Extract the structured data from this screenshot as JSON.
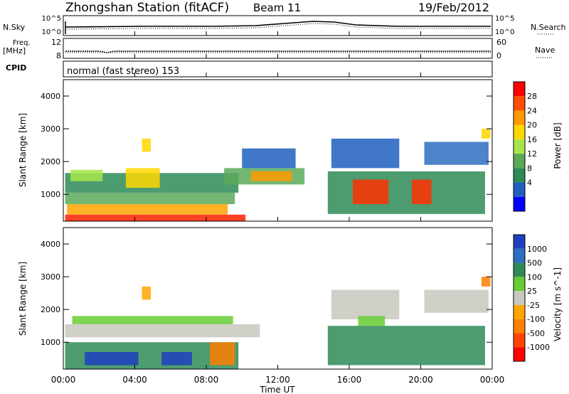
{
  "header": {
    "title": "Zhongshan Station (fitACF)",
    "beam": "Beam 11",
    "date": "19/Feb/2012"
  },
  "noise_panel": {
    "left_label": "N.Sky",
    "left_ticks": [
      "10^5",
      "10^0"
    ],
    "right_ticks": [
      "10^5",
      "10^0"
    ],
    "right_label": "N.Search"
  },
  "freq_panel": {
    "left_label_1": "Freq.",
    "left_label_2": "[MHz]",
    "left_ticks": [
      "12",
      "8"
    ],
    "right_ticks": [
      "60",
      "0"
    ],
    "right_label": "Nave"
  },
  "cpid_panel": {
    "label": "CPID",
    "mode": "normal (fast stereo) 153"
  },
  "axes": {
    "ylabel": "Slant Range [km]",
    "xlabel": "Time UT",
    "y_ticks": [
      "4000",
      "3000",
      "2000",
      "1000"
    ],
    "x_ticks": [
      "00:00",
      "04:00",
      "08:00",
      "12:00",
      "16:00",
      "20:00",
      "00:00"
    ]
  },
  "power_colorbar": {
    "label": "Power [dB]",
    "ticks": [
      "28",
      "24",
      "20",
      "16",
      "12",
      "8",
      "4"
    ],
    "colors": [
      "#ff0000",
      "#ff4c00",
      "#ff9a00",
      "#ffd700",
      "#a6e64b",
      "#5aaa5a",
      "#2e8b57",
      "#1f5fbf",
      "#0000ff"
    ]
  },
  "velocity_colorbar": {
    "label": "Velocity [m s^-1]",
    "ticks": [
      "1000",
      "500",
      "100",
      "25",
      "-25",
      "-100",
      "-500",
      "-1000"
    ],
    "colors": [
      "#1f3fbf",
      "#2e6fbf",
      "#2e8b57",
      "#66cc33",
      "#c8c8c0",
      "#ffa500",
      "#ff7f00",
      "#ff4500",
      "#ff0000"
    ]
  },
  "chart_data": {
    "type": "heatmap",
    "x_range_hours": [
      0,
      24
    ],
    "ylim": [
      180,
      4500
    ],
    "power_regions": [
      {
        "t0": 0.1,
        "t1": 10.2,
        "r0": 180,
        "r1": 380,
        "color": "#ff2000"
      },
      {
        "t0": 0.2,
        "t1": 9.2,
        "r0": 380,
        "r1": 700,
        "color": "#ffa500"
      },
      {
        "t0": 0.1,
        "t1": 9.6,
        "r0": 700,
        "r1": 1050,
        "color": "#5aaa5a"
      },
      {
        "t0": 0.1,
        "t1": 9.8,
        "r0": 1050,
        "r1": 1650,
        "color": "#2e8b57"
      },
      {
        "t0": 0.4,
        "t1": 2.2,
        "r0": 1400,
        "r1": 1750,
        "color": "#a6e64b"
      },
      {
        "t0": 3.5,
        "t1": 5.4,
        "r0": 1200,
        "r1": 1800,
        "color": "#ffd700"
      },
      {
        "t0": 4.4,
        "t1": 4.9,
        "r0": 2300,
        "r1": 2700,
        "color": "#ffd700"
      },
      {
        "t0": 9.0,
        "t1": 13.5,
        "r0": 1300,
        "r1": 1800,
        "color": "#5aaa5a"
      },
      {
        "t0": 10.5,
        "t1": 12.8,
        "r0": 1400,
        "r1": 1700,
        "color": "#ff9a00"
      },
      {
        "t0": 10.0,
        "t1": 13.0,
        "r0": 1800,
        "r1": 2400,
        "color": "#1f5fbf"
      },
      {
        "t0": 14.8,
        "t1": 23.6,
        "r0": 400,
        "r1": 1700,
        "color": "#2e8b57"
      },
      {
        "t0": 16.2,
        "t1": 18.2,
        "r0": 700,
        "r1": 1450,
        "color": "#ff3000"
      },
      {
        "t0": 19.5,
        "t1": 20.6,
        "r0": 700,
        "r1": 1450,
        "color": "#ff3000"
      },
      {
        "t0": 15.0,
        "t1": 18.8,
        "r0": 1800,
        "r1": 2700,
        "color": "#1f5fbf"
      },
      {
        "t0": 20.2,
        "t1": 23.8,
        "r0": 1900,
        "r1": 2600,
        "color": "#2e6fbf"
      },
      {
        "t0": 23.4,
        "t1": 23.9,
        "r0": 2700,
        "r1": 3000,
        "color": "#ffd700"
      }
    ],
    "velocity_regions": [
      {
        "t0": 0.1,
        "t1": 9.8,
        "r0": 180,
        "r1": 1000,
        "color": "#2e8b57"
      },
      {
        "t0": 1.2,
        "t1": 4.2,
        "r0": 300,
        "r1": 700,
        "color": "#1f3fbf"
      },
      {
        "t0": 5.5,
        "t1": 7.2,
        "r0": 300,
        "r1": 700,
        "color": "#1f3fbf"
      },
      {
        "t0": 8.2,
        "t1": 9.6,
        "r0": 300,
        "r1": 1000,
        "color": "#ff7f00"
      },
      {
        "t0": 0.1,
        "t1": 11.0,
        "r0": 1150,
        "r1": 1550,
        "color": "#c8c8c0"
      },
      {
        "t0": 0.5,
        "t1": 9.5,
        "r0": 1550,
        "r1": 1800,
        "color": "#66cc33"
      },
      {
        "t0": 4.4,
        "t1": 4.9,
        "r0": 2300,
        "r1": 2700,
        "color": "#ffa500"
      },
      {
        "t0": 14.8,
        "t1": 23.6,
        "r0": 300,
        "r1": 1500,
        "color": "#2e8b57"
      },
      {
        "t0": 15.0,
        "t1": 18.8,
        "r0": 1700,
        "r1": 2600,
        "color": "#c8c8c0"
      },
      {
        "t0": 20.2,
        "t1": 23.8,
        "r0": 1900,
        "r1": 2600,
        "color": "#c8c8c0"
      },
      {
        "t0": 16.5,
        "t1": 18.0,
        "r0": 1500,
        "r1": 1800,
        "color": "#66cc33"
      },
      {
        "t0": 23.4,
        "t1": 23.9,
        "r0": 2700,
        "r1": 3000,
        "color": "#ff7f00"
      }
    ]
  }
}
